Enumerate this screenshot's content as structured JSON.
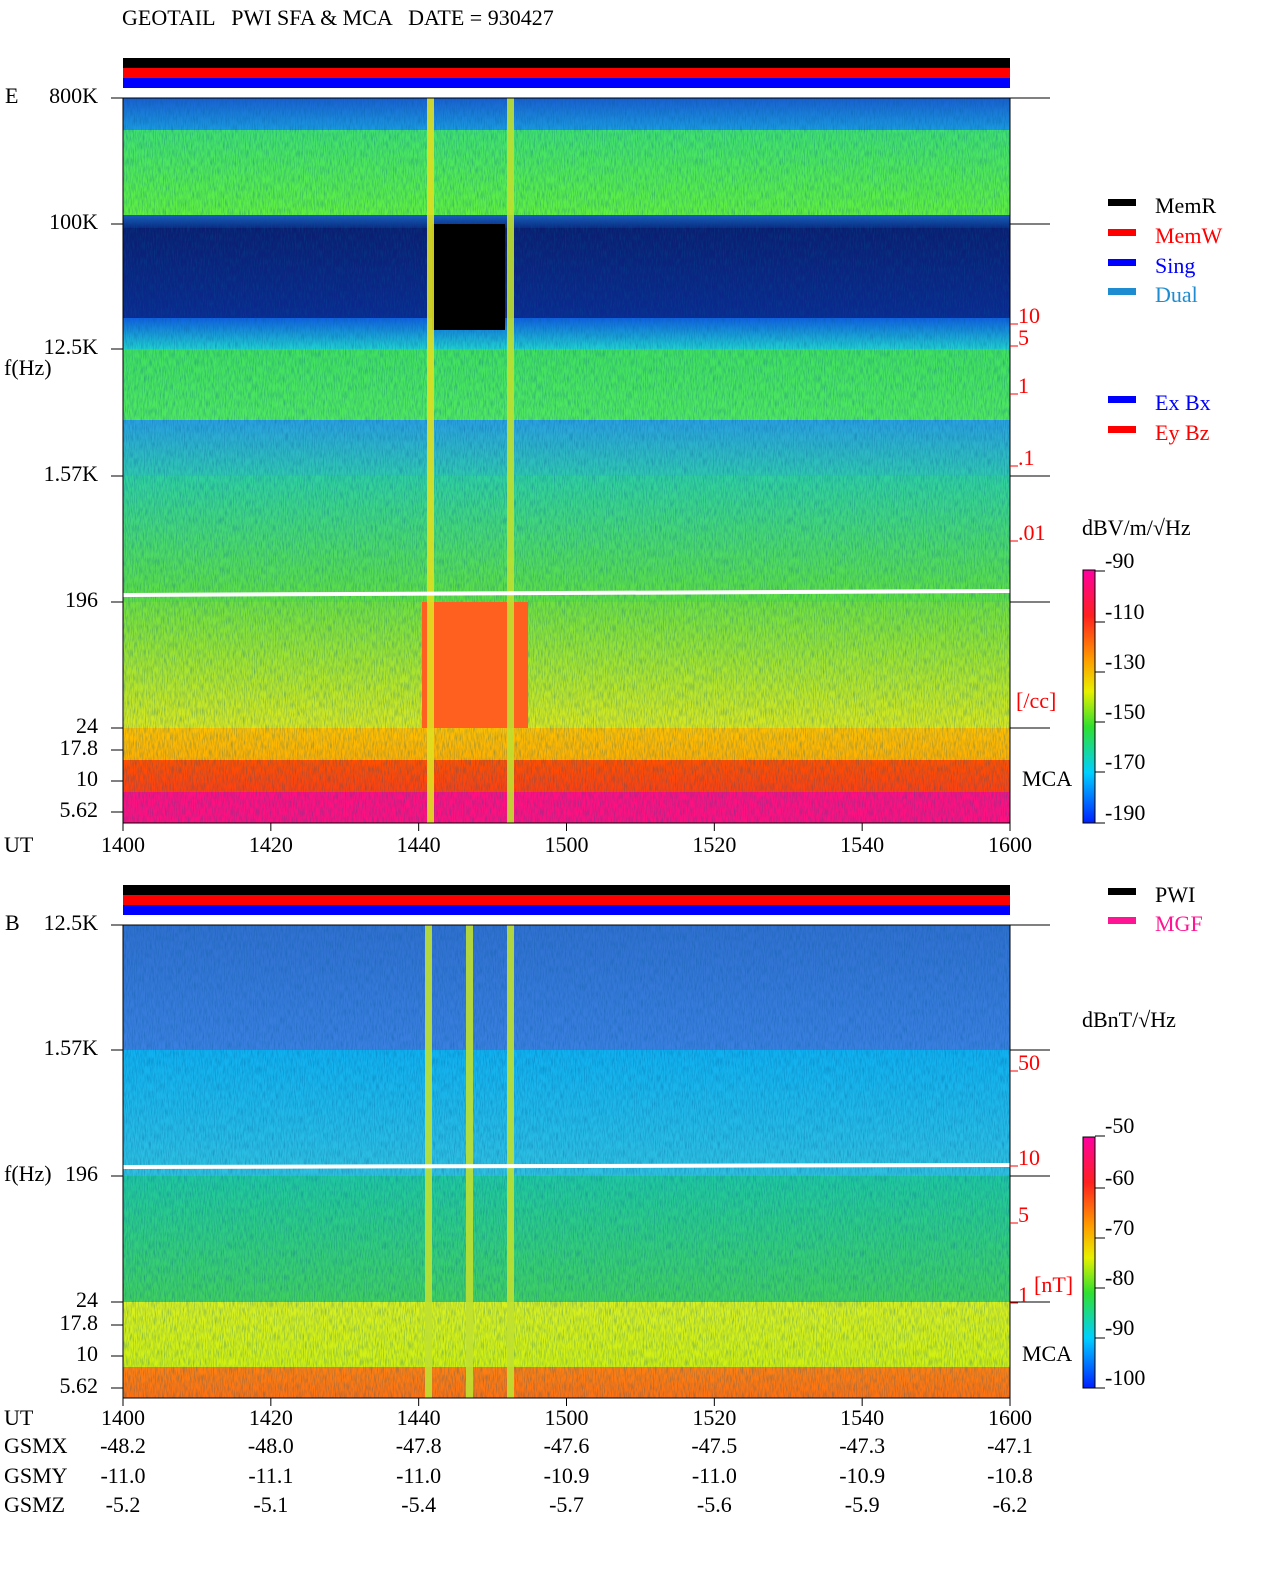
{
  "title": "GEOTAIL   PWI SFA & MCA   DATE = 930427",
  "panels": [
    {
      "label": "E",
      "freq_label": "f(Hz)",
      "freq_ticks": [
        "800K",
        "100K",
        "12.5K",
        "1.57K",
        "196",
        "24",
        "17.8",
        "10",
        "5.62"
      ],
      "time_label": "UT",
      "time_ticks": [
        "1400",
        "1420",
        "1440",
        "1500",
        "1520",
        "1540",
        "1600"
      ],
      "mode_legend": [
        "MemR",
        "MemW",
        "Sing",
        "Dual"
      ],
      "component_legend": [
        "Ex Bx",
        "Ey Bz"
      ],
      "unit": "dBV/m/√Hz",
      "scale_ticks": [
        "-90",
        "-110",
        "-130",
        "-150",
        "-170",
        "-190"
      ],
      "aux_ticks": [
        "10",
        "5",
        "1",
        ".1",
        ".01"
      ],
      "aux_unit": "[/cc]",
      "band_label": "MCA"
    },
    {
      "label": "B",
      "freq_label": "f(Hz)",
      "freq_ticks": [
        "12.5K",
        "1.57K",
        "196",
        "24",
        "17.8",
        "10",
        "5.62"
      ],
      "time_label": "UT",
      "time_ticks": [
        "1400",
        "1420",
        "1440",
        "1500",
        "1520",
        "1540",
        "1600"
      ],
      "mode_legend": [
        "PWI",
        "MGF"
      ],
      "unit": "dBnT/√Hz",
      "scale_ticks": [
        "-50",
        "-60",
        "-70",
        "-80",
        "-90",
        "-100"
      ],
      "aux_ticks": [
        "50",
        "10",
        "5",
        "1"
      ],
      "aux_unit": "[nT]",
      "band_label": "MCA"
    }
  ],
  "orbit": {
    "rows": [
      {
        "label": "GSMX",
        "values": [
          "-48.2",
          "-48.0",
          "-47.8",
          "-47.6",
          "-47.5",
          "-47.3",
          "-47.1"
        ]
      },
      {
        "label": "GSMY",
        "values": [
          "-11.0",
          "-11.1",
          "-11.0",
          "-10.9",
          "-11.0",
          "-10.9",
          "-10.8"
        ]
      },
      {
        "label": "GSMZ",
        "values": [
          "-5.2",
          "-5.1",
          "-5.4",
          "-5.7",
          "-5.6",
          "-5.9",
          "-6.2"
        ]
      }
    ]
  }
}
